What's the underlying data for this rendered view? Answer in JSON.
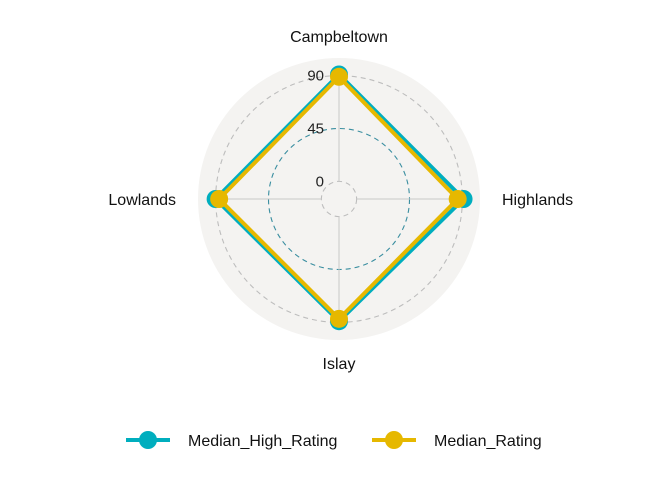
{
  "chart_data": {
    "type": "radar",
    "title": "",
    "axes": [
      "Campbeltown",
      "Highlands",
      "Islay",
      "Lowlands"
    ],
    "grid_values": [
      0,
      45,
      90
    ],
    "grid_labels": [
      "0",
      "45",
      "90"
    ],
    "rlim": [
      -15,
      105
    ],
    "series": [
      {
        "name": "Median_High_Rating",
        "color": "#00AEBE",
        "values": [
          91,
          91,
          89,
          90
        ]
      },
      {
        "name": "Median_Rating",
        "color": "#E6B800",
        "values": [
          89,
          86,
          87,
          87
        ]
      }
    ],
    "legend_position": "bottom",
    "grid_colors": {
      "outer": "#bdbdbd",
      "mid": "#3a8ea0",
      "panel": "#f4f3f1",
      "axis": "#c8c8c8"
    }
  }
}
